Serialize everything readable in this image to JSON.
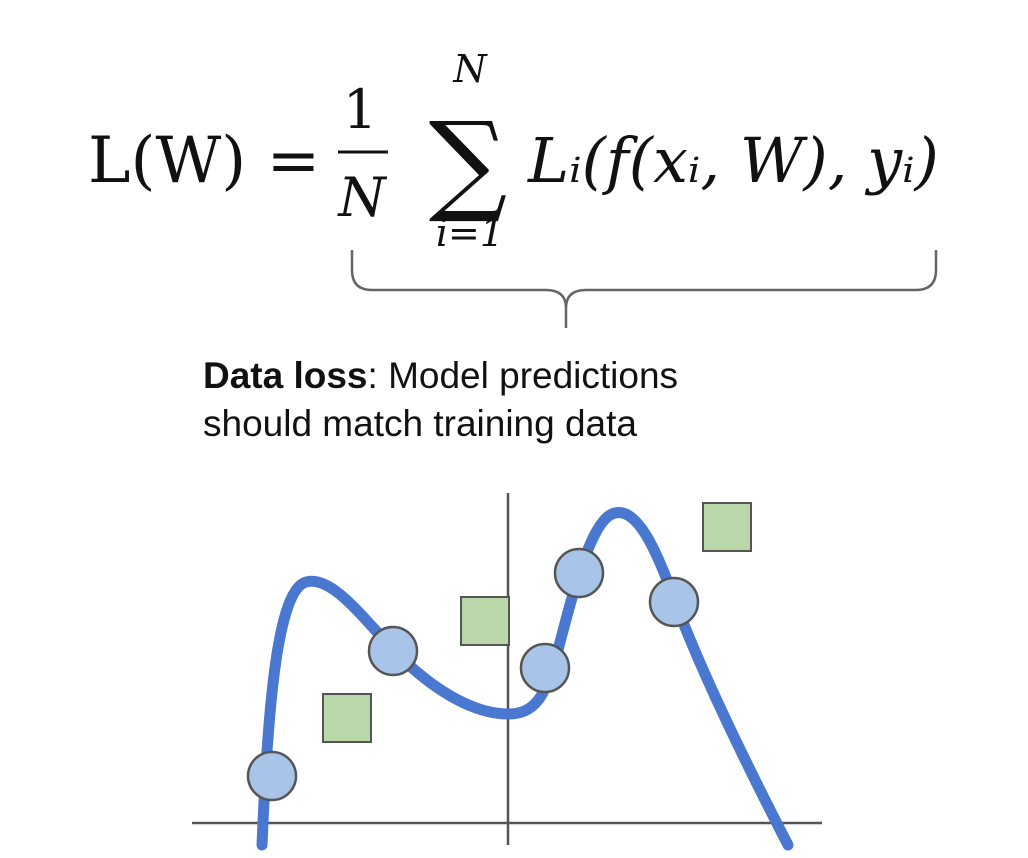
{
  "equation": {
    "lhs": "L(W) =",
    "frac_num": "1",
    "frac_den": "N",
    "sum_upper": "N",
    "sum_symbol": "∑",
    "sum_lower": "i=1",
    "term": "Lᵢ(f(xᵢ, W), yᵢ)"
  },
  "caption": {
    "bold": "Data loss",
    "rest_line1": ": Model predictions",
    "line2": "should match training data"
  },
  "plot": {
    "curve_color": "#4a78d0",
    "circle_fill": "#a8c4e8",
    "square_fill": "#b9d7a8",
    "marker_stroke": "#555555",
    "axis_color": "#555555"
  }
}
